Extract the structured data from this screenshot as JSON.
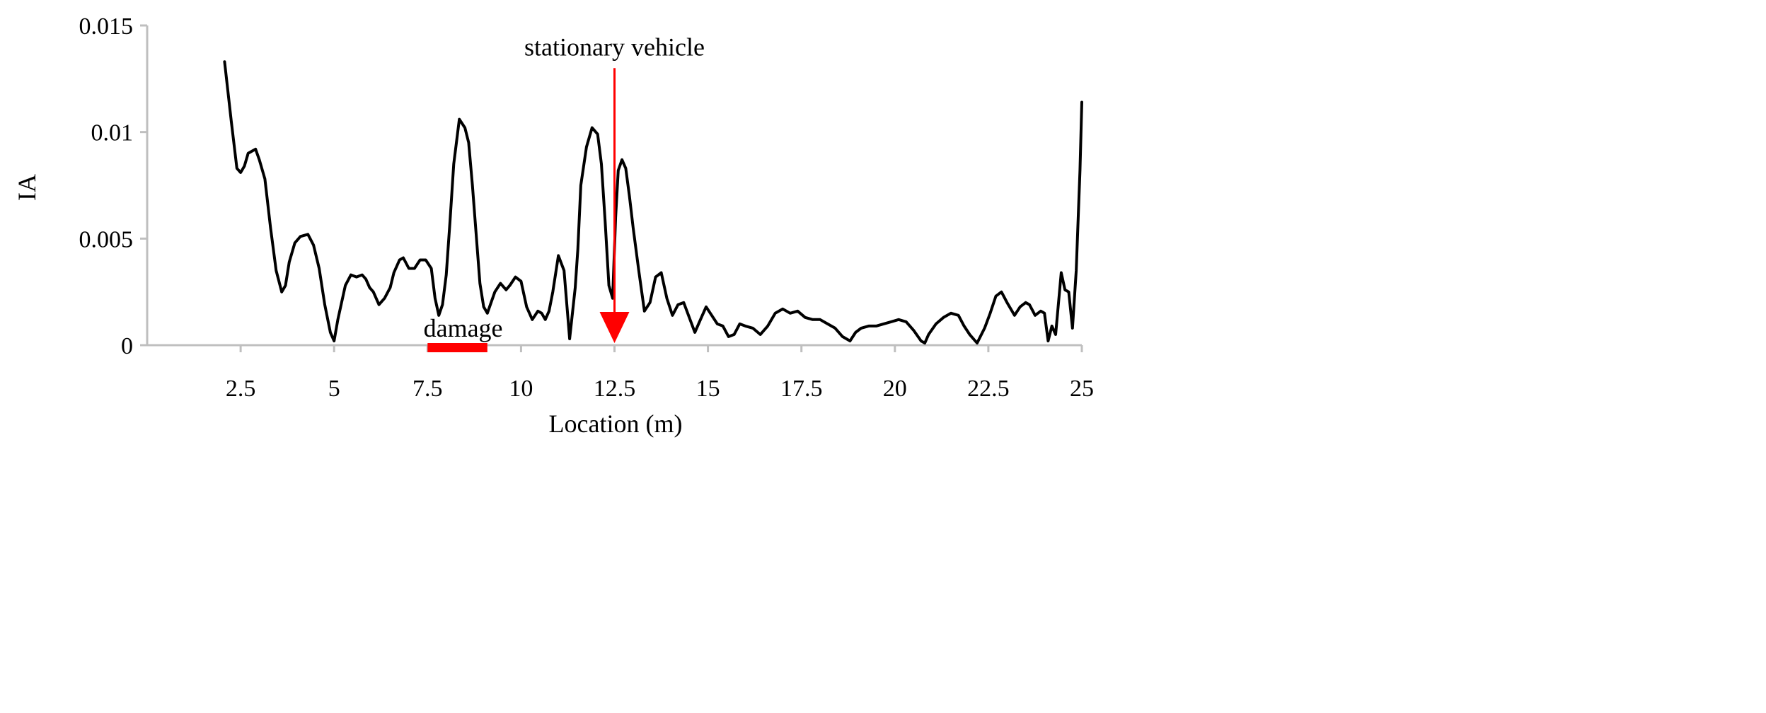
{
  "chart_data": {
    "type": "line",
    "xlabel": "Location (m)",
    "ylabel": "IA",
    "xlim": [
      0,
      25
    ],
    "ylim": [
      0,
      0.015
    ],
    "x_ticks": [
      {
        "value": 2.5,
        "label": "2.5"
      },
      {
        "value": 5,
        "label": "5"
      },
      {
        "value": 7.5,
        "label": "7.5"
      },
      {
        "value": 10,
        "label": "10"
      },
      {
        "value": 12.5,
        "label": "12.5"
      },
      {
        "value": 15,
        "label": "15"
      },
      {
        "value": 17.5,
        "label": "17.5"
      },
      {
        "value": 20,
        "label": "20"
      },
      {
        "value": 22.5,
        "label": "22.5"
      },
      {
        "value": 25,
        "label": "25"
      }
    ],
    "y_ticks": [
      {
        "value": 0,
        "label": "0"
      },
      {
        "value": 0.005,
        "label": "0.005"
      },
      {
        "value": 0.01,
        "label": "0.01"
      },
      {
        "value": 0.015,
        "label": "0.015"
      }
    ],
    "grid": false,
    "series": [
      {
        "color": "#000000",
        "x": [
          2.07,
          2.25,
          2.4,
          2.5,
          2.6,
          2.7,
          2.8,
          2.9,
          3.0,
          3.15,
          3.3,
          3.45,
          3.6,
          3.7,
          3.8,
          3.95,
          4.1,
          4.3,
          4.45,
          4.6,
          4.75,
          4.9,
          5.0,
          5.1,
          5.3,
          5.45,
          5.6,
          5.75,
          5.85,
          5.95,
          6.05,
          6.2,
          6.35,
          6.5,
          6.6,
          6.75,
          6.85,
          7.0,
          7.15,
          7.3,
          7.45,
          7.6,
          7.7,
          7.8,
          7.9,
          8.0,
          8.1,
          8.2,
          8.35,
          8.5,
          8.6,
          8.7,
          8.8,
          8.9,
          9.0,
          9.1,
          9.2,
          9.3,
          9.45,
          9.6,
          9.7,
          9.85,
          10.0,
          10.15,
          10.3,
          10.45,
          10.55,
          10.65,
          10.75,
          10.85,
          11.0,
          11.15,
          11.3,
          11.45,
          11.52,
          11.6,
          11.75,
          11.9,
          12.05,
          12.15,
          12.25,
          12.35,
          12.45,
          12.53,
          12.6,
          12.7,
          12.8,
          12.9,
          13.0,
          13.15,
          13.3,
          13.45,
          13.6,
          13.75,
          13.9,
          14.05,
          14.2,
          14.35,
          14.5,
          14.65,
          14.8,
          14.95,
          15.1,
          15.25,
          15.4,
          15.55,
          15.7,
          15.85,
          16.0,
          16.2,
          16.4,
          16.6,
          16.8,
          17.0,
          17.2,
          17.4,
          17.6,
          17.8,
          18.0,
          18.2,
          18.4,
          18.6,
          18.8,
          18.95,
          19.1,
          19.3,
          19.5,
          19.7,
          19.9,
          20.1,
          20.3,
          20.5,
          20.7,
          20.8,
          20.9,
          21.1,
          21.3,
          21.5,
          21.7,
          21.85,
          22.0,
          22.2,
          22.4,
          22.55,
          22.7,
          22.85,
          23.0,
          23.2,
          23.35,
          23.5,
          23.6,
          23.75,
          23.9,
          24.0,
          24.1,
          24.2,
          24.3,
          24.45,
          24.55,
          24.65,
          24.75,
          24.85,
          24.95,
          25.0
        ],
        "values": [
          0.0133,
          0.0105,
          0.0083,
          0.0081,
          0.0084,
          0.009,
          0.0091,
          0.0092,
          0.0087,
          0.0078,
          0.0055,
          0.0035,
          0.0025,
          0.0028,
          0.0039,
          0.0048,
          0.0051,
          0.0052,
          0.0047,
          0.0036,
          0.0019,
          0.0006,
          0.0002,
          0.0012,
          0.0028,
          0.0033,
          0.0032,
          0.0033,
          0.0031,
          0.0027,
          0.0025,
          0.0019,
          0.0022,
          0.0027,
          0.0034,
          0.004,
          0.0041,
          0.0036,
          0.0036,
          0.004,
          0.004,
          0.0036,
          0.0022,
          0.0014,
          0.0019,
          0.0033,
          0.0058,
          0.0085,
          0.0106,
          0.0102,
          0.0095,
          0.0075,
          0.0052,
          0.0029,
          0.0018,
          0.0015,
          0.002,
          0.0025,
          0.0029,
          0.0026,
          0.0028,
          0.0032,
          0.003,
          0.0018,
          0.0012,
          0.0016,
          0.0015,
          0.0012,
          0.0016,
          0.0025,
          0.0042,
          0.0035,
          0.0003,
          0.0027,
          0.0045,
          0.0075,
          0.0093,
          0.0102,
          0.0099,
          0.0085,
          0.0058,
          0.0028,
          0.0022,
          0.006,
          0.0082,
          0.0087,
          0.0083,
          0.007,
          0.0055,
          0.0035,
          0.0016,
          0.002,
          0.0032,
          0.0034,
          0.0022,
          0.0014,
          0.0019,
          0.002,
          0.0013,
          0.0006,
          0.0012,
          0.0018,
          0.0014,
          0.001,
          0.0009,
          0.0004,
          0.0005,
          0.001,
          0.0009,
          0.0008,
          0.0005,
          0.0009,
          0.0015,
          0.0017,
          0.0015,
          0.0016,
          0.0013,
          0.0012,
          0.0012,
          0.001,
          0.0008,
          0.0004,
          0.0002,
          0.0006,
          0.0008,
          0.0009,
          0.0009,
          0.001,
          0.0011,
          0.0012,
          0.0011,
          0.0007,
          0.0002,
          0.0001,
          0.0005,
          0.001,
          0.0013,
          0.0015,
          0.0014,
          0.0009,
          0.0005,
          0.0001,
          0.0008,
          0.0015,
          0.0023,
          0.0025,
          0.002,
          0.0014,
          0.0018,
          0.002,
          0.0019,
          0.0014,
          0.0016,
          0.0015,
          0.0002,
          0.0009,
          0.0005,
          0.0034,
          0.0026,
          0.0025,
          0.0008,
          0.0035,
          0.0082,
          0.0114
        ]
      }
    ],
    "annotations": [
      {
        "text": "stationary vehicle",
        "type": "arrow",
        "x": 12.5,
        "y_from": 0.013,
        "y_to": 0.0001,
        "color": "#ff0000"
      },
      {
        "text": "damage",
        "type": "bar",
        "x_from": 7.5,
        "x_to": 9.1,
        "y": 0,
        "color": "#ff0000"
      }
    ],
    "axis_color": "#bfbfbf",
    "line_color": "#000000",
    "accent_color": "#ff0000"
  }
}
